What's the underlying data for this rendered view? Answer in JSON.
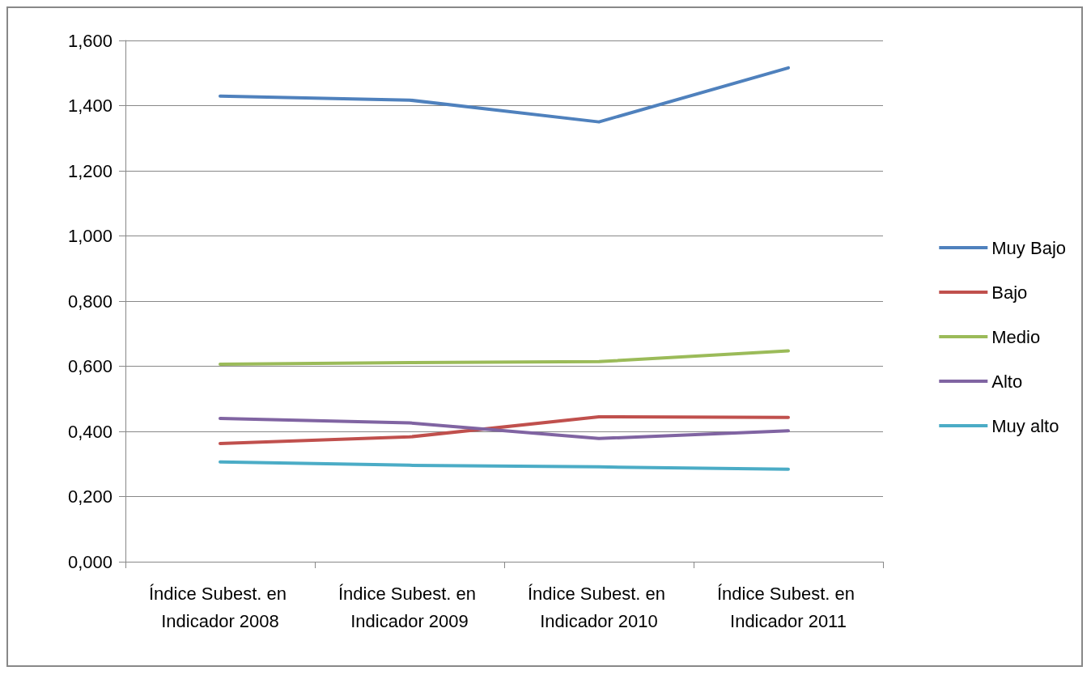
{
  "chart_data": {
    "type": "line",
    "categories": [
      "Índice Subest. en Indicador 2008",
      "Índice Subest. en Indicador 2009",
      "Índice Subest. en Indicador 2010",
      "Índice Subest. en Indicador 2011"
    ],
    "series": [
      {
        "name": "Muy Bajo",
        "color": "#4f81bd",
        "values": [
          1.429,
          1.417,
          1.35,
          1.516
        ]
      },
      {
        "name": "Bajo",
        "color": "#c0504d",
        "values": [
          0.363,
          0.383,
          0.445,
          0.443
        ]
      },
      {
        "name": "Medio",
        "color": "#9bbb59",
        "values": [
          0.606,
          0.611,
          0.614,
          0.647
        ]
      },
      {
        "name": "Alto",
        "color": "#8064a2",
        "values": [
          0.44,
          0.426,
          0.378,
          0.402
        ]
      },
      {
        "name": "Muy alto",
        "color": "#4bacc6",
        "values": [
          0.306,
          0.296,
          0.291,
          0.284
        ]
      }
    ],
    "ylim": [
      0,
      1.6
    ],
    "yticks": [
      {
        "value": 0,
        "label": "0,000"
      },
      {
        "value": 0.2,
        "label": "0,200"
      },
      {
        "value": 0.4,
        "label": "0,400"
      },
      {
        "value": 0.6,
        "label": "0,600"
      },
      {
        "value": 0.8,
        "label": "0,800"
      },
      {
        "value": 1.0,
        "label": "1,000"
      },
      {
        "value": 1.2,
        "label": "1,200"
      },
      {
        "value": 1.4,
        "label": "1,400"
      },
      {
        "value": 1.6,
        "label": "1,600"
      }
    ],
    "grid": "y",
    "legend": "right",
    "marker": "none",
    "line_style": "solid"
  }
}
